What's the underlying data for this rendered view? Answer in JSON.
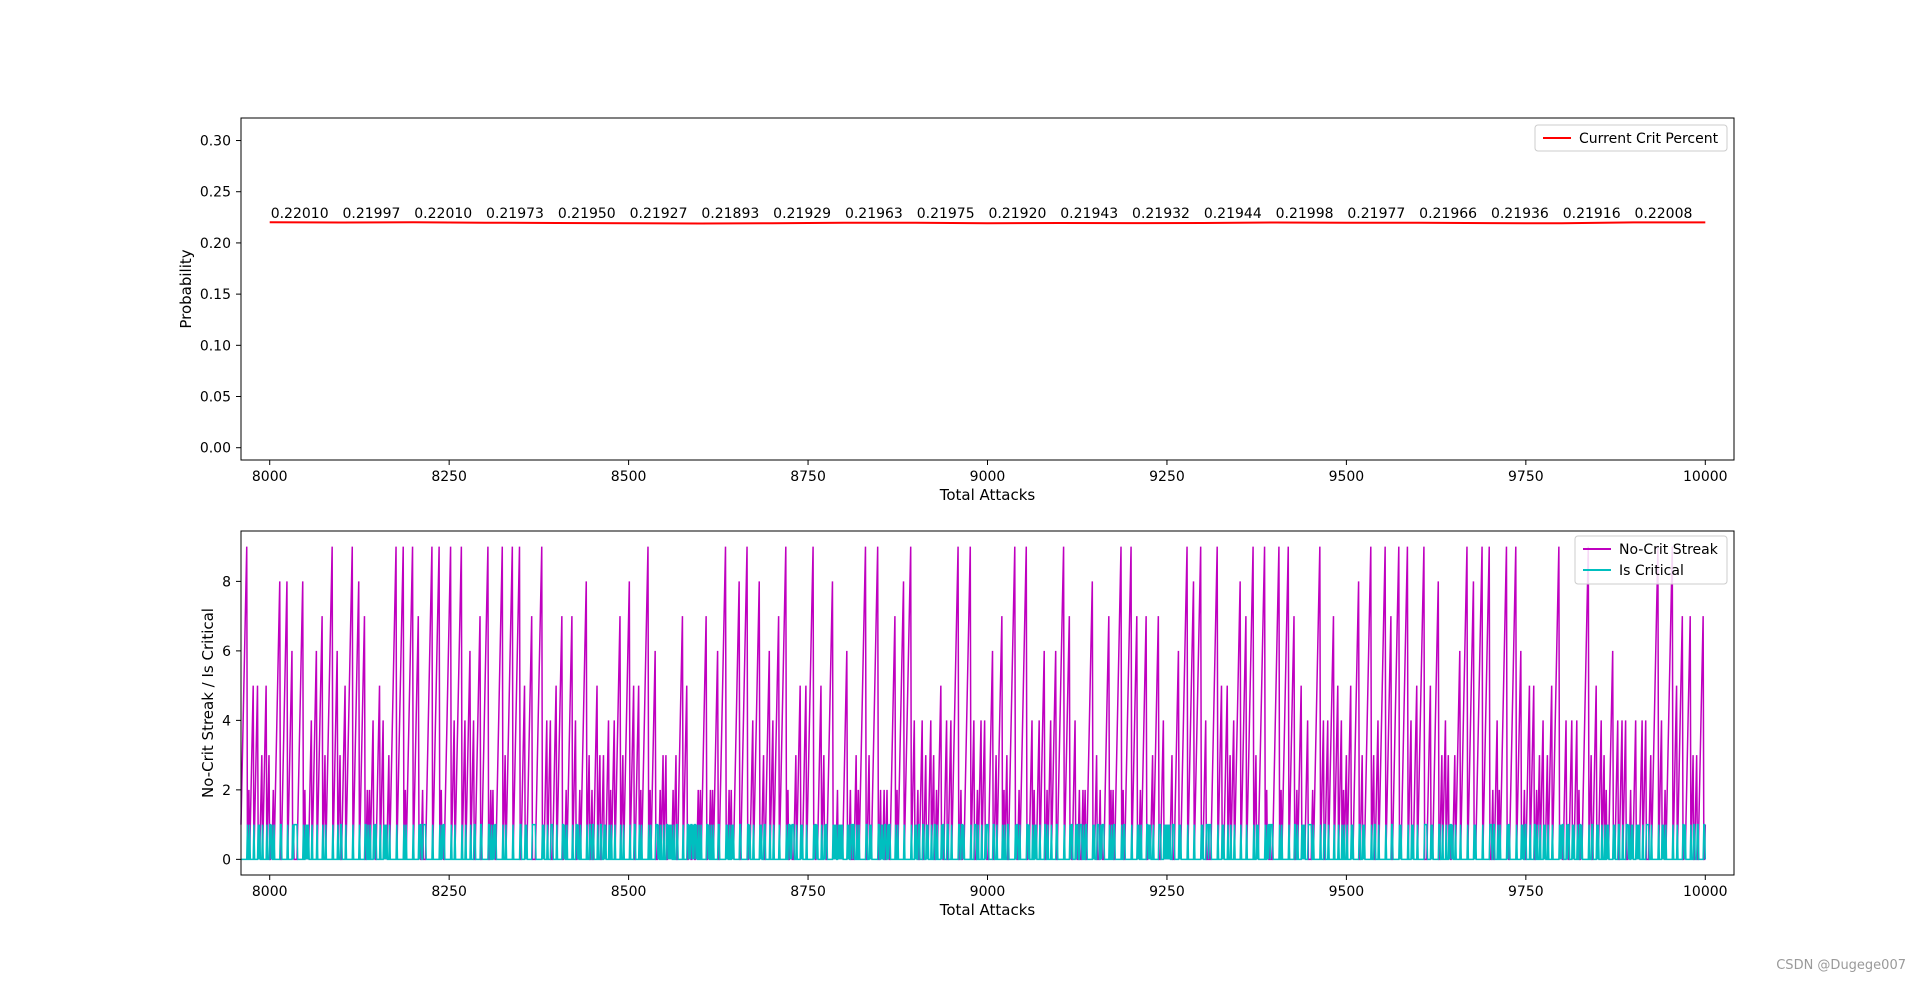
{
  "chart_data": [
    {
      "type": "line",
      "xlabel": "Total Attacks",
      "ylabel": "Probability",
      "xlim": [
        7960,
        10040
      ],
      "ylim": [
        -0.012,
        0.322
      ],
      "xticks": [
        8000,
        8250,
        8500,
        8750,
        9000,
        9250,
        9500,
        9750,
        10000
      ],
      "yticks": [
        0.0,
        0.05,
        0.1,
        0.15,
        0.2,
        0.25,
        0.3
      ],
      "grid": false,
      "legend_position": "top-right",
      "series": [
        {
          "name": "Current Crit Percent",
          "color": "#ff0000",
          "x": [
            8000,
            8100,
            8200,
            8300,
            8400,
            8500,
            8600,
            8700,
            8800,
            8900,
            9000,
            9100,
            9200,
            9300,
            9400,
            9500,
            9600,
            9700,
            9800,
            9900,
            10000
          ],
          "values": [
            0.2201,
            0.21997,
            0.2201,
            0.21973,
            0.2195,
            0.21927,
            0.21893,
            0.21929,
            0.21963,
            0.21975,
            0.2192,
            0.21943,
            0.21932,
            0.21944,
            0.21998,
            0.21977,
            0.21966,
            0.21936,
            0.21916,
            0.22008,
            0.22
          ]
        }
      ],
      "annotations": {
        "x": [
          8000,
          8100,
          8200,
          8300,
          8400,
          8500,
          8600,
          8700,
          8800,
          8900,
          9000,
          9100,
          9200,
          9300,
          9400,
          9500,
          9600,
          9700,
          9800,
          9900
        ],
        "labels": [
          "0.22010",
          "0.21997",
          "0.22010",
          "0.21973",
          "0.21950",
          "0.21927",
          "0.21893",
          "0.21929",
          "0.21963",
          "0.21975",
          "0.21920",
          "0.21943",
          "0.21932",
          "0.21944",
          "0.21998",
          "0.21977",
          "0.21966",
          "0.21936",
          "0.21916",
          "0.22008"
        ]
      }
    },
    {
      "type": "line",
      "xlabel": "Total Attacks",
      "ylabel": "No-Crit Streak / Is Critical",
      "xlim": [
        7960,
        10040
      ],
      "ylim": [
        -0.45,
        9.45
      ],
      "xticks": [
        8000,
        8250,
        8500,
        8750,
        9000,
        9250,
        9500,
        9750,
        10000
      ],
      "yticks": [
        0,
        2,
        4,
        6,
        8
      ],
      "grid": false,
      "legend_position": "top-right",
      "x_range": [
        7960,
        10000
      ],
      "series": [
        {
          "name": "No-Crit Streak",
          "color": "#bf00bf"
        },
        {
          "name": "Is Critical",
          "color": "#00bfbf"
        }
      ]
    }
  ],
  "watermark": "CSDN @Dugege007"
}
